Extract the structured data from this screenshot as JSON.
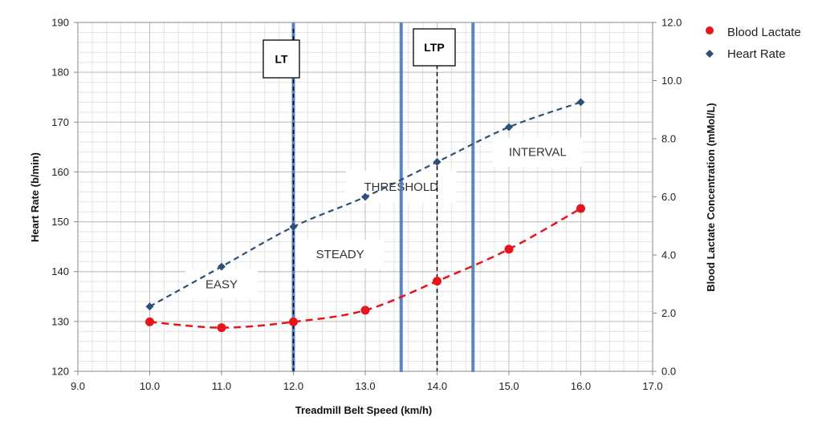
{
  "chart_data": {
    "type": "line",
    "xlabel": "Treadmill Belt Speed (km/h)",
    "ylabel": "Heart Rate (b/min)",
    "y2label": "Blood Lactate Concentration (mMol/L)",
    "xlim": [
      9.0,
      17.0
    ],
    "ylim": [
      120,
      190
    ],
    "y2lim": [
      0.0,
      12.0
    ],
    "xticks": [
      "9.0",
      "10.0",
      "11.0",
      "12.0",
      "13.0",
      "14.0",
      "15.0",
      "16.0",
      "17.0"
    ],
    "yticks": [
      "120",
      "130",
      "140",
      "150",
      "160",
      "170",
      "180",
      "190"
    ],
    "y2ticks": [
      "0.0",
      "2.0",
      "4.0",
      "6.0",
      "8.0",
      "10.0",
      "12.0"
    ],
    "grid": true,
    "legend_placement": "right-top",
    "series": [
      {
        "name": "Blood Lactate",
        "axis": "right",
        "marker": "circle",
        "color": "#e8141c",
        "x": [
          10,
          11,
          12,
          13,
          14,
          15,
          16
        ],
        "y": [
          1.7,
          1.5,
          1.7,
          2.1,
          3.1,
          4.2,
          5.6
        ]
      },
      {
        "name": "Heart Rate",
        "axis": "left",
        "marker": "diamond",
        "color": "#2e4f7a",
        "x": [
          10,
          11,
          12,
          13,
          14,
          15,
          16
        ],
        "y": [
          133,
          141,
          149,
          155,
          162,
          169,
          174
        ]
      }
    ],
    "thresholds": [
      {
        "label": "LT",
        "x": 12.0
      },
      {
        "label": "LTP",
        "x": 14.0
      }
    ],
    "zone_boundaries": [
      12.0,
      13.5,
      14.5
    ],
    "zones": [
      {
        "label": "EASY",
        "x": 11.0,
        "y": 137.5
      },
      {
        "label": "STEADY",
        "x": 12.65,
        "y": 143.5
      },
      {
        "label": "THRESHOLD",
        "x": 13.5,
        "y": 157
      },
      {
        "label": "INTERVAL",
        "x": 15.4,
        "y": 164
      }
    ]
  }
}
